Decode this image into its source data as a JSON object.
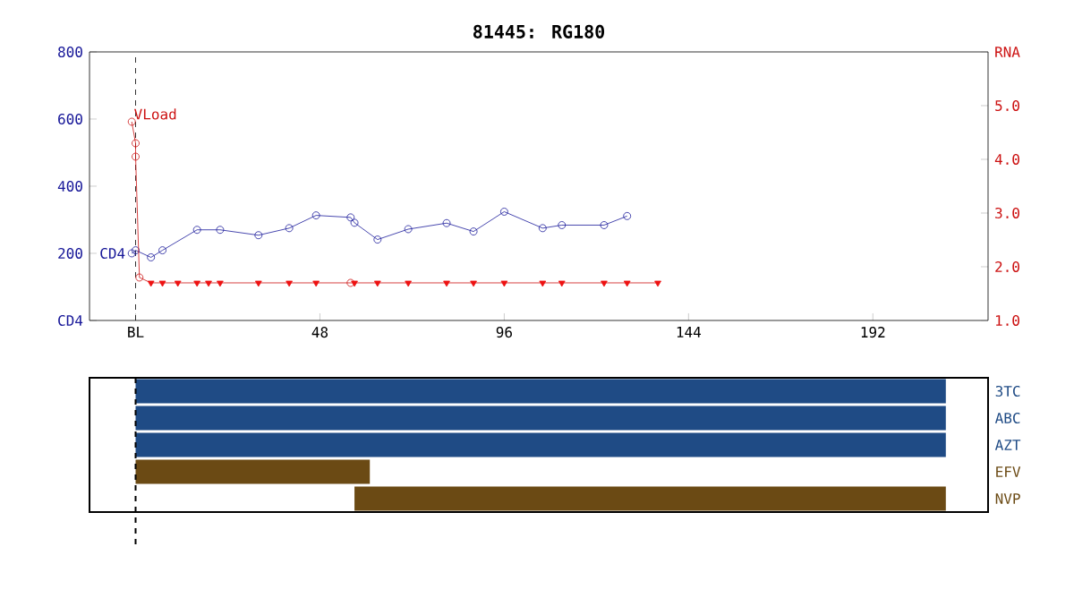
{
  "chart_data": [
    {
      "type": "line",
      "title": "81445: RG180",
      "xlim": [
        -12,
        222
      ],
      "xticks": [
        {
          "value": 0,
          "label": "BL"
        },
        48,
        96,
        144,
        192
      ],
      "ylim": [
        0,
        800
      ],
      "yticks": [
        {
          "value": 0,
          "label": "CD4"
        },
        200,
        400,
        600,
        800
      ],
      "y2lim": [
        1,
        6
      ],
      "y2ticks": [
        {
          "value": 1,
          "label": "1.0"
        },
        {
          "value": 2,
          "label": "2.0"
        },
        {
          "value": 3,
          "label": "3.0"
        },
        {
          "value": 4,
          "label": "4.0"
        },
        {
          "value": 5,
          "label": "5.0"
        },
        {
          "value": 6,
          "label": "RNA"
        }
      ],
      "grid": false,
      "ref_lines": [
        {
          "axis": "x",
          "value": 0,
          "color": "#000000",
          "line_style": "dashed"
        }
      ],
      "series": [
        {
          "name": "CD4",
          "type": "line",
          "axis": "y",
          "marker": "circle",
          "color": "#1a1a9a",
          "x": [
            -1,
            0,
            4,
            7,
            16,
            22,
            32,
            40,
            47,
            56,
            57,
            63,
            71,
            81,
            88,
            96,
            106,
            111,
            122,
            128
          ],
          "values": [
            200,
            209,
            188,
            209,
            270,
            270,
            254,
            275,
            313,
            307,
            291,
            241,
            272,
            290,
            265,
            324,
            275,
            284,
            284,
            311
          ]
        },
        {
          "name": "VLoad",
          "type": "line",
          "axis": "y2",
          "marker": "none",
          "color": "#cc1111",
          "x": [
            -1,
            0,
            0,
            1,
            4,
            7,
            11,
            16,
            19,
            22,
            32,
            40,
            47,
            56,
            57,
            63,
            71,
            81,
            88,
            96,
            106,
            111,
            122,
            128,
            136
          ],
          "values": [
            4.7,
            4.3,
            4.05,
            1.8,
            1.7,
            1.7,
            1.7,
            1.7,
            1.7,
            1.7,
            1.7,
            1.7,
            1.7,
            1.7,
            1.7,
            1.7,
            1.7,
            1.7,
            1.7,
            1.7,
            1.7,
            1.7,
            1.7,
            1.7,
            1.7
          ]
        },
        {
          "type": "scatter",
          "axis": "y2",
          "marker": "circle",
          "color": "#cc1111",
          "x": [
            -1,
            0,
            0,
            1,
            56
          ],
          "values": [
            4.7,
            4.3,
            4.05,
            1.8,
            1.7
          ]
        },
        {
          "type": "scatter",
          "axis": "y2",
          "marker": "triangle",
          "color": "#ee1111",
          "x": [
            4,
            7,
            11,
            16,
            19,
            22,
            32,
            40,
            47,
            57,
            63,
            71,
            81,
            88,
            96,
            106,
            111,
            122,
            128,
            136
          ],
          "values": [
            1.7,
            1.7,
            1.7,
            1.7,
            1.7,
            1.7,
            1.7,
            1.7,
            1.7,
            1.7,
            1.7,
            1.7,
            1.7,
            1.7,
            1.7,
            1.7,
            1.7,
            1.7,
            1.7,
            1.7
          ]
        }
      ]
    },
    {
      "type": "bar",
      "orientation": "horizontal",
      "categories": [
        "3TC",
        "ABC",
        "AZT",
        "EFV",
        "NVP"
      ],
      "base": [
        0,
        0,
        0,
        0,
        57
      ],
      "values": [
        211,
        211,
        211,
        61,
        154
      ],
      "colors": [
        "#1f4b85",
        "#1f4b85",
        "#1f4b85",
        "#6b4a14",
        "#6b4a14"
      ],
      "xlim": [
        -12,
        222
      ],
      "tick_labels": "y",
      "ref_lines": [
        {
          "axis": "x",
          "value": 0,
          "color": "#000000",
          "line_style": "dashed"
        }
      ]
    }
  ]
}
